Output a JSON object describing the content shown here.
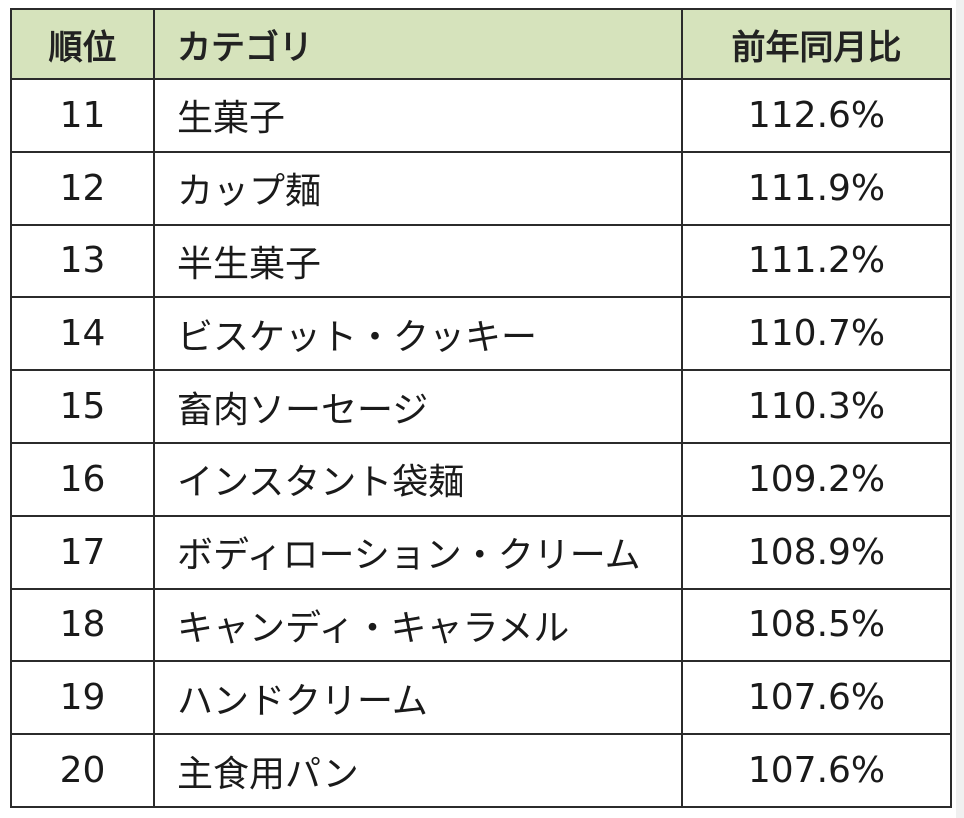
{
  "table": {
    "headers": {
      "rank": "順位",
      "category": "カテゴリ",
      "ratio": "前年同月比"
    },
    "rows": [
      {
        "rank": "11",
        "category": "生菓子",
        "ratio": "112.6%"
      },
      {
        "rank": "12",
        "category": "カップ麺",
        "ratio": "111.9%"
      },
      {
        "rank": "13",
        "category": "半生菓子",
        "ratio": "111.2%"
      },
      {
        "rank": "14",
        "category": "ビスケット・クッキー",
        "ratio": "110.7%"
      },
      {
        "rank": "15",
        "category": "畜肉ソーセージ",
        "ratio": "110.3%"
      },
      {
        "rank": "16",
        "category": "インスタント袋麺",
        "ratio": "109.2%"
      },
      {
        "rank": "17",
        "category": "ボディローション・クリーム",
        "ratio": "108.9%"
      },
      {
        "rank": "18",
        "category": "キャンディ・キャラメル",
        "ratio": "108.5%"
      },
      {
        "rank": "19",
        "category": "ハンドクリーム",
        "ratio": "107.6%"
      },
      {
        "rank": "20",
        "category": "主食用パン",
        "ratio": "107.6%"
      }
    ],
    "header_bg_color": "#d6e3bc",
    "border_color": "#2b2b2b"
  }
}
